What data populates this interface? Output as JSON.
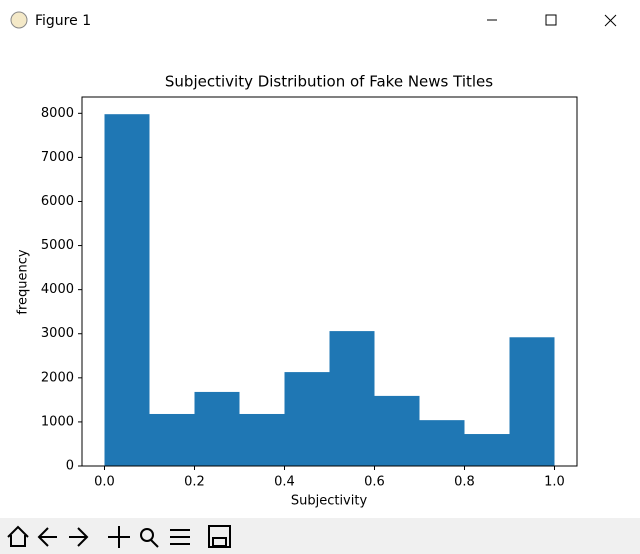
{
  "window": {
    "title": "Figure 1"
  },
  "chart_data": {
    "type": "histogram",
    "title": "Subjectivity Distribution of Fake News Titles",
    "x_label": "Subjectivity",
    "y_label": "frequency",
    "bins": [
      0,
      0.1,
      0.2,
      0.3,
      0.4,
      0.5,
      0.6,
      0.7,
      0.8,
      0.9,
      1.0
    ],
    "values": [
      7980,
      1180,
      1680,
      1180,
      2130,
      3060,
      1590,
      1040,
      725,
      2920
    ],
    "color": "#1f77b4",
    "xlim": [
      -0.05,
      1.05
    ],
    "ylim": [
      0,
      8370
    ],
    "xticks": [
      {
        "value": 0,
        "label": "0.0"
      },
      0.2,
      0.4,
      0.6,
      0.8,
      {
        "value": 1,
        "label": "1.0"
      }
    ],
    "yticks": [
      0,
      1000,
      2000,
      3000,
      4000,
      5000,
      6000,
      7000,
      8000
    ],
    "grid": false
  }
}
